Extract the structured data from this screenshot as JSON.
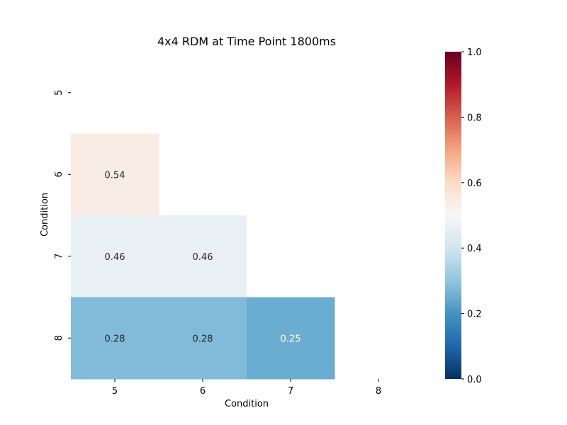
{
  "chart_data": {
    "type": "heatmap",
    "title": "4x4 RDM at Time Point 1800ms",
    "xlabel": "Condition",
    "ylabel": "Condition",
    "x_categories": [
      "5",
      "6",
      "7",
      "8"
    ],
    "y_categories": [
      "5",
      "6",
      "7",
      "8"
    ],
    "mask": "upper-triangle-including-diagonal",
    "cells": [
      {
        "row": "6",
        "col": "5",
        "value": 0.54,
        "label": "0.54"
      },
      {
        "row": "7",
        "col": "5",
        "value": 0.46,
        "label": "0.46"
      },
      {
        "row": "7",
        "col": "6",
        "value": 0.46,
        "label": "0.46"
      },
      {
        "row": "8",
        "col": "5",
        "value": 0.28,
        "label": "0.28"
      },
      {
        "row": "8",
        "col": "6",
        "value": 0.28,
        "label": "0.28"
      },
      {
        "row": "8",
        "col": "7",
        "value": 0.25,
        "label": "0.25"
      }
    ],
    "colormap": "RdBu_r",
    "vmin": 0.0,
    "vmax": 1.0,
    "colorbar_ticks": [
      "0.0",
      "0.2",
      "0.4",
      "0.6",
      "0.8",
      "1.0"
    ],
    "colorbar_placement": "right",
    "grid": false
  }
}
